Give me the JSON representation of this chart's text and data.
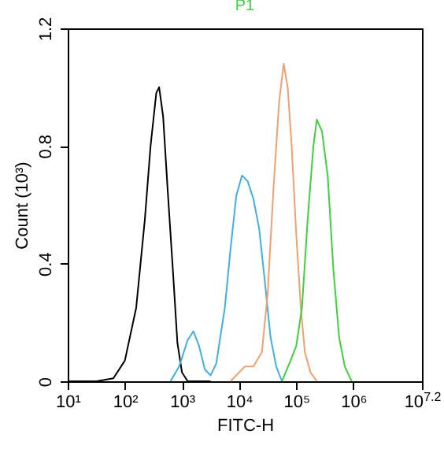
{
  "chart_data": {
    "type": "line",
    "title": "P1",
    "xlabel": "FITC-H",
    "ylabel": "Count (10³)",
    "log": "x",
    "grid": false,
    "xlim": [
      10,
      15848932
    ],
    "xticks": [
      {
        "value": 10,
        "label": "10¹"
      },
      {
        "value": 100,
        "label": "10²"
      },
      {
        "value": 1000,
        "label": "10³"
      },
      {
        "value": 10000,
        "label": "10⁴"
      },
      {
        "value": 100000,
        "label": "10⁵"
      },
      {
        "value": 1000000,
        "label": "10⁶"
      },
      {
        "value": 15848932,
        "label": "10$^{7.2}$"
      }
    ],
    "ylim": [
      0,
      1.2
    ],
    "yticks": [
      0,
      0.4,
      0.8,
      1.2
    ],
    "series": [
      {
        "color": "#000000",
        "x": [
          10,
          32,
          63,
          100,
          158,
          224,
          282,
          355,
          398,
          468,
          562,
          708,
          832,
          1000,
          1259,
          3162
        ],
        "values": [
          0,
          0,
          0.01,
          0.07,
          0.25,
          0.55,
          0.8,
          0.98,
          1.0,
          0.9,
          0.65,
          0.35,
          0.13,
          0.03,
          0,
          0
        ]
      },
      {
        "color": "#3fb0e0",
        "x": [
          631,
          891,
          1259,
          1585,
          1995,
          2512,
          3162,
          3981,
          5623,
          7079,
          8913,
          11220,
          14130,
          17780,
          22390,
          28180,
          35480,
          44670,
          56230
        ],
        "values": [
          0,
          0.05,
          0.14,
          0.17,
          0.12,
          0.04,
          0.02,
          0.06,
          0.25,
          0.45,
          0.63,
          0.7,
          0.68,
          0.62,
          0.52,
          0.34,
          0.15,
          0.05,
          0
        ]
      },
      {
        "color": "#f0a070",
        "x": [
          7079,
          10000,
          12590,
          17780,
          25120,
          31620,
          39810,
          50120,
          60260,
          70790,
          83180,
          100000,
          120200,
          141300,
          177800,
          229100
        ],
        "values": [
          0,
          0.03,
          0.05,
          0.05,
          0.1,
          0.3,
          0.65,
          0.95,
          1.08,
          1.0,
          0.8,
          0.5,
          0.25,
          0.1,
          0.03,
          0
        ]
      },
      {
        "color": "#40d040",
        "x": [
          56230,
          79430,
          100000,
          125900,
          158500,
          199500,
          229100,
          281800,
          354800,
          446700,
          562300,
          707900,
          933300
        ],
        "values": [
          0,
          0.07,
          0.12,
          0.25,
          0.55,
          0.8,
          0.89,
          0.85,
          0.7,
          0.38,
          0.15,
          0.05,
          0
        ]
      }
    ]
  }
}
